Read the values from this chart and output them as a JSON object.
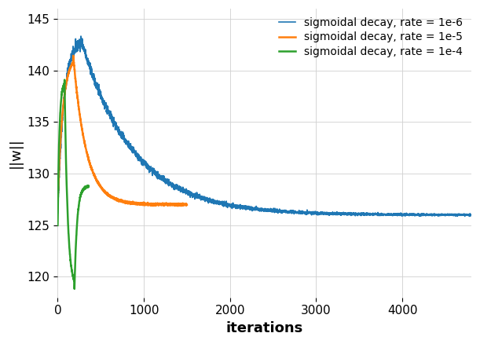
{
  "title": "",
  "xlabel": "iterations",
  "ylabel": "||w||",
  "xlim": [
    0,
    4800
  ],
  "ylim": [
    118,
    146
  ],
  "yticks": [
    120,
    125,
    130,
    135,
    140,
    145
  ],
  "xticks": [
    0,
    1000,
    2000,
    3000,
    4000
  ],
  "legend": [
    {
      "label": "sigmoidal decay, rate = 1e-6",
      "color": "#1f77b4"
    },
    {
      "label": "sigmoidal decay, rate = 1e-5",
      "color": "#ff7f0e"
    },
    {
      "label": "sigmoidal decay, rate = 1e-4",
      "color": "#2ca02c"
    }
  ],
  "background_color": "#ffffff",
  "grid_color": "#d0d0d0"
}
